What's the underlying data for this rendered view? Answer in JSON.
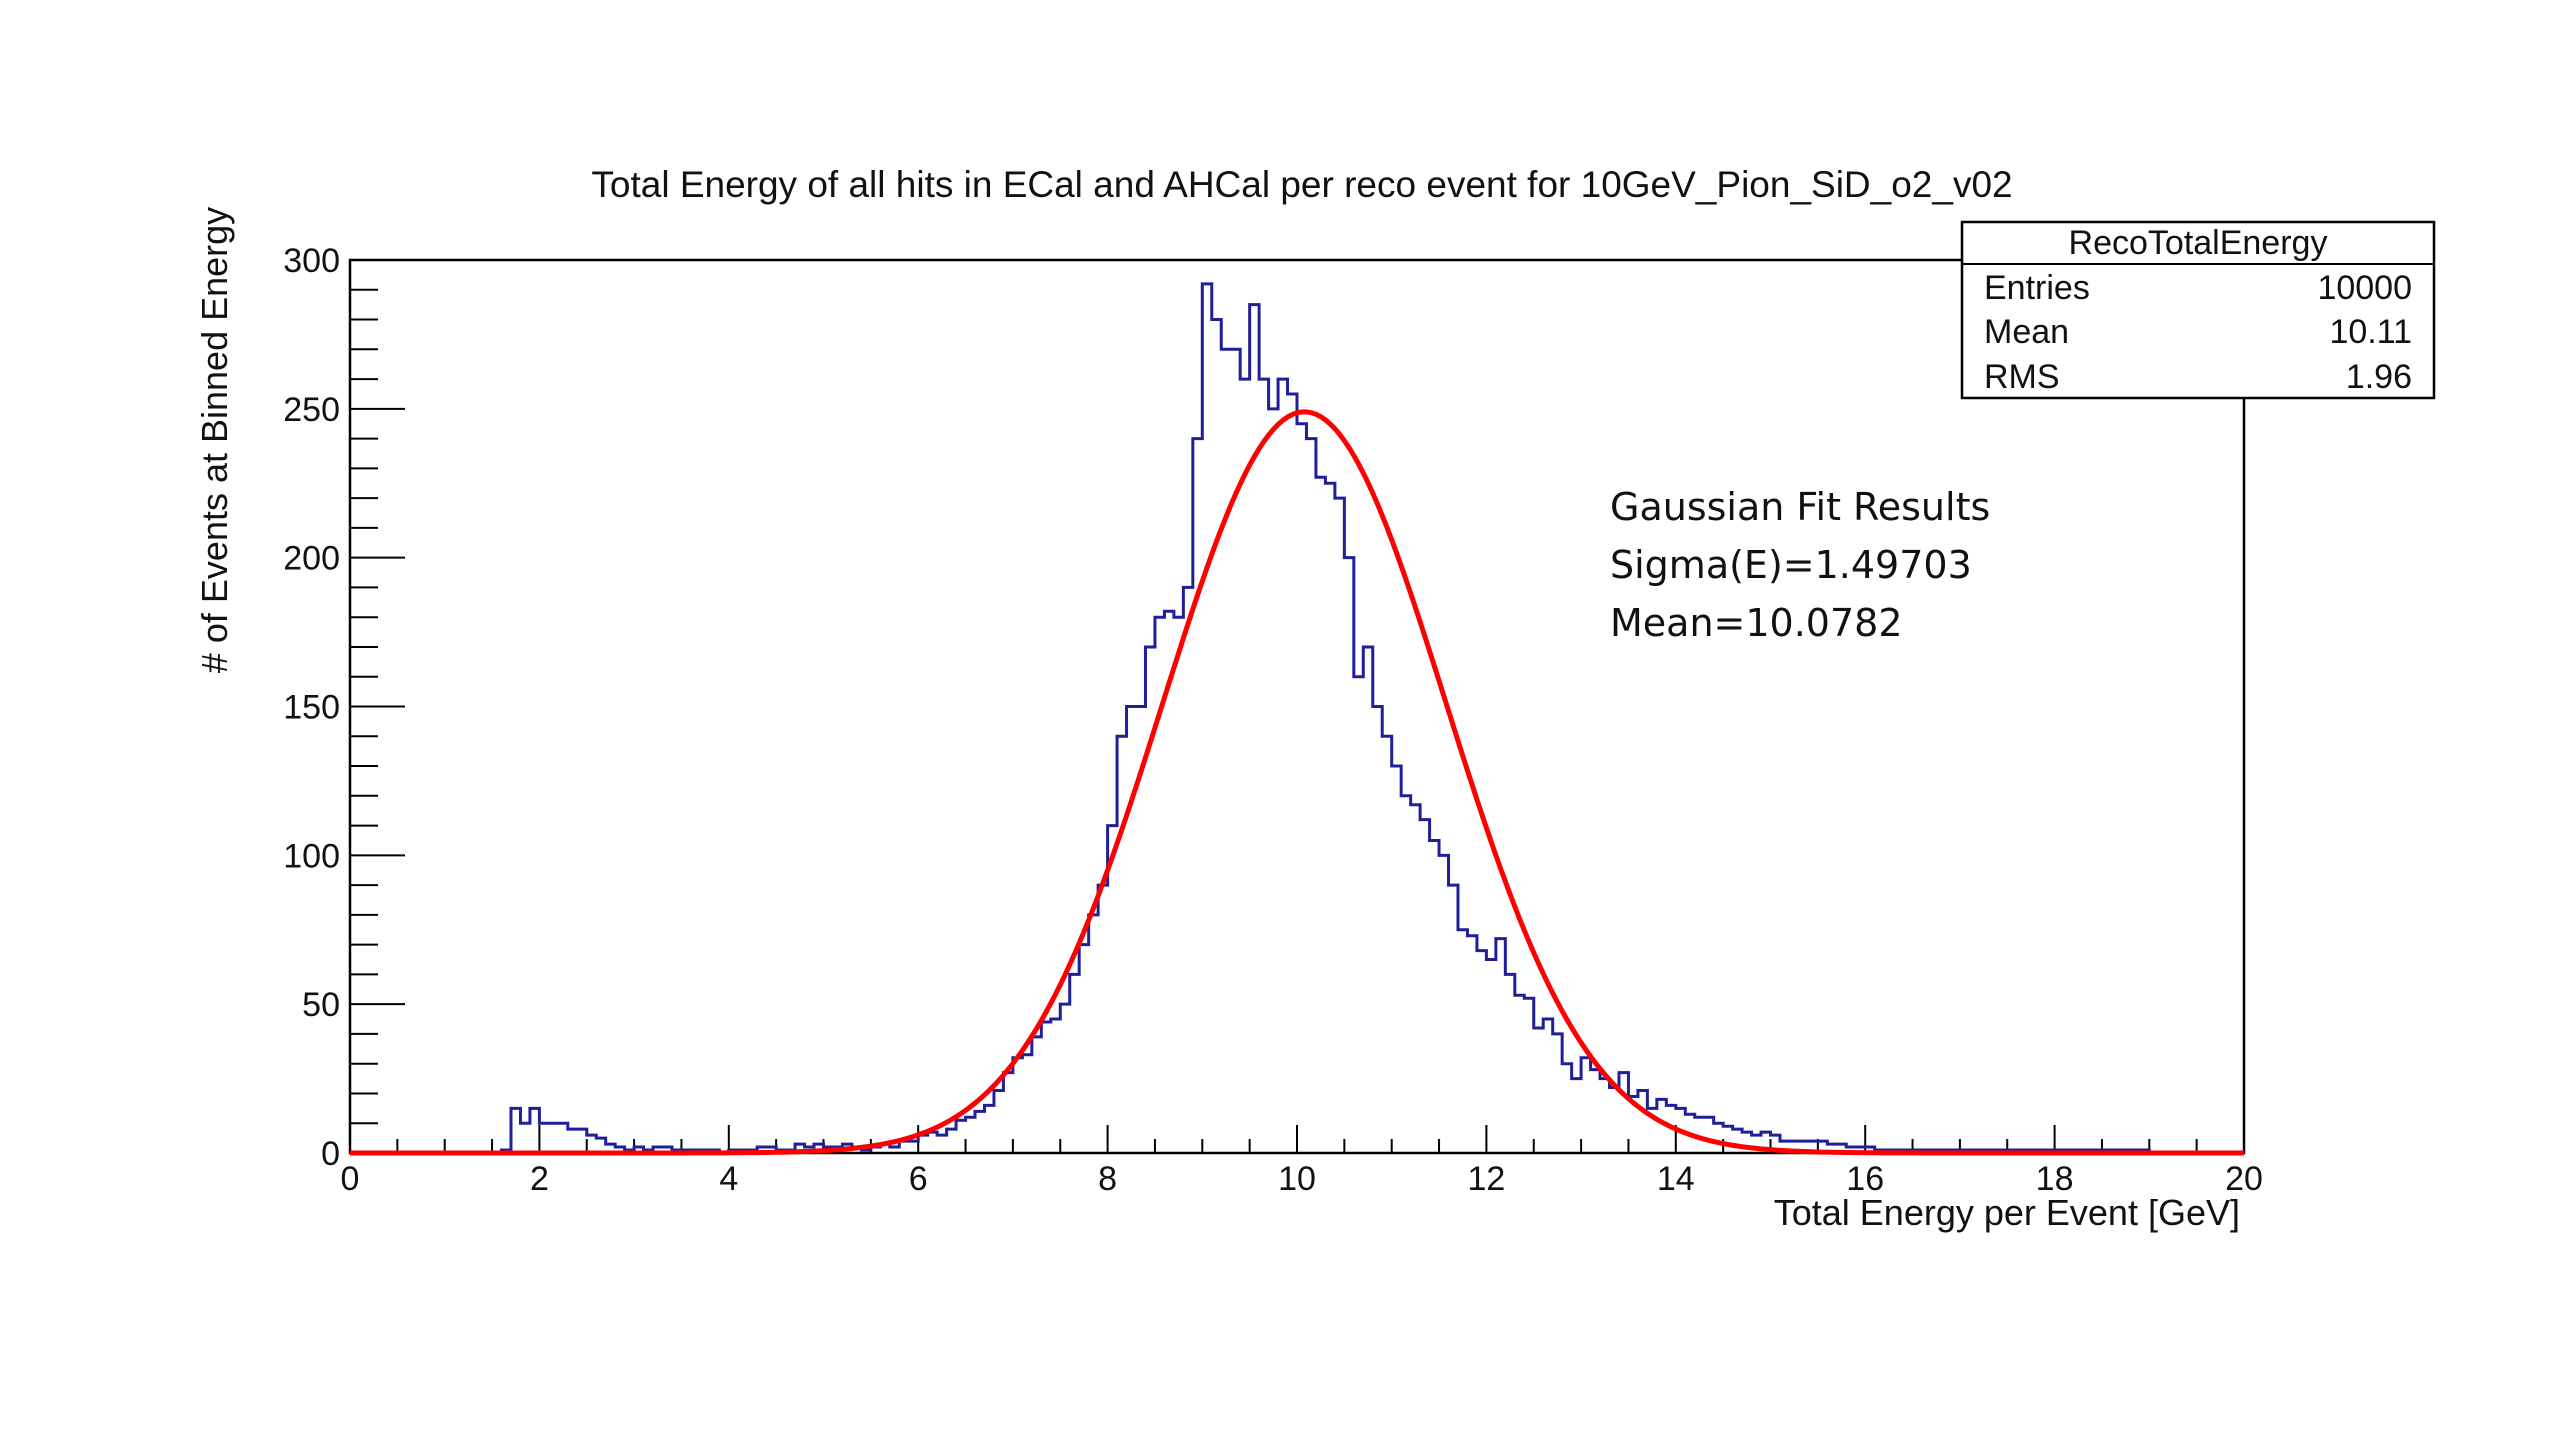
{
  "chart_data": {
    "type": "bar",
    "title": "Total Energy of all hits in ECal and AHCal per reco event for 10GeV_Pion_SiD_o2_v02",
    "xlabel": "Total Energy per Event [GeV]",
    "ylabel": "# of Events at Binned Energy",
    "xlim": [
      0,
      20
    ],
    "ylim": [
      0,
      300
    ],
    "x_ticks": [
      "0",
      "2",
      "4",
      "6",
      "8",
      "10",
      "12",
      "14",
      "16",
      "18",
      "20"
    ],
    "y_ticks": [
      "0",
      "50",
      "100",
      "150",
      "200",
      "250",
      "300"
    ],
    "grid": false,
    "histogram": {
      "bin_width": 0.1,
      "color": "#1f1f9a",
      "counts": [
        0,
        0,
        0,
        0,
        0,
        0,
        0,
        0,
        0,
        0,
        0,
        0,
        0,
        0,
        0,
        0,
        1,
        15,
        10,
        15,
        10,
        10,
        10,
        8,
        8,
        6,
        5,
        3,
        2,
        1,
        2,
        1,
        2,
        2,
        1,
        1,
        1,
        1,
        1,
        0,
        1,
        1,
        1,
        2,
        2,
        1,
        1,
        3,
        2,
        3,
        2,
        2,
        3,
        2,
        1,
        2,
        3,
        2,
        4,
        4,
        6,
        7,
        6,
        8,
        11,
        12,
        14,
        16,
        21,
        27,
        32,
        33,
        39,
        44,
        45,
        50,
        60,
        70,
        80,
        90,
        110,
        140,
        150,
        150,
        170,
        180,
        182,
        180,
        190,
        240,
        292,
        280,
        270,
        270,
        260,
        285,
        260,
        250,
        260,
        255,
        245,
        240,
        227,
        225,
        220,
        200,
        160,
        170,
        150,
        140,
        130,
        120,
        117,
        112,
        105,
        100,
        90,
        75,
        73,
        68,
        65,
        72,
        60,
        53,
        52,
        42,
        45,
        40,
        30,
        25,
        32,
        28,
        25,
        22,
        27,
        19,
        21,
        15,
        18,
        16,
        15,
        13,
        12,
        12,
        10,
        9,
        8,
        7,
        6,
        7,
        6,
        4,
        4,
        4,
        4,
        4,
        3,
        3,
        2,
        2,
        2,
        1,
        1,
        1,
        1,
        1,
        1,
        1,
        1,
        1,
        1,
        1,
        1,
        1,
        1,
        1,
        1,
        1,
        1,
        1,
        1,
        1,
        1,
        1,
        1,
        1,
        1,
        1,
        1,
        1
      ]
    },
    "fit": {
      "type": "gaussian",
      "color": "#ff0000",
      "sigma": 1.49703,
      "mean": 10.0782,
      "amplitude": 249
    },
    "stats_box": {
      "title": "RecoTotalEnergy",
      "rows": [
        {
          "label": "Entries",
          "value": "10000"
        },
        {
          "label": "Mean",
          "value": "10.11"
        },
        {
          "label": "RMS",
          "value": "1.96"
        }
      ],
      "placement": "top-right"
    },
    "annotation": {
      "lines": [
        "Gaussian Fit Results",
        "Sigma(E)=1.49703",
        "Mean=10.0782"
      ]
    }
  }
}
